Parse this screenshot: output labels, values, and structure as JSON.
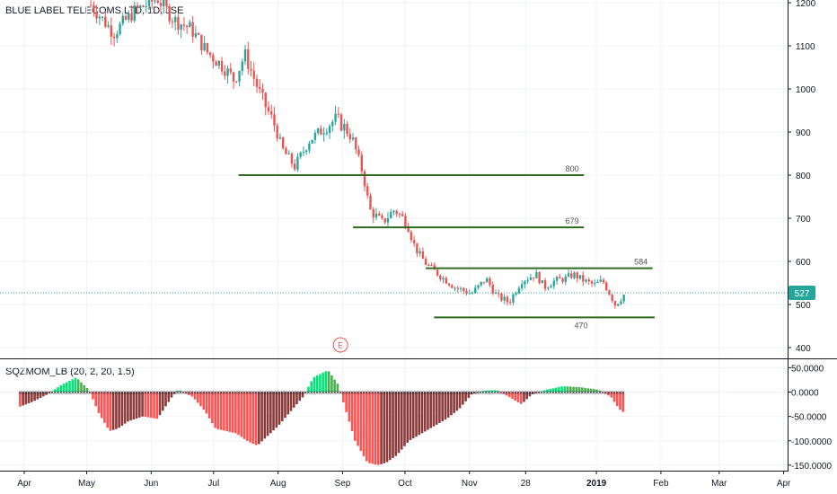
{
  "chart_data": [
    {
      "type": "candlestick",
      "title": "BLUE LABEL TELECOMS LTD, 1D, JSE",
      "y_ticks": [
        400,
        500,
        600,
        700,
        800,
        900,
        1000,
        1100,
        1200
      ],
      "ylim": [
        375,
        1210
      ],
      "x_labels": [
        "Apr",
        "May",
        "Jun",
        "Jul",
        "Aug",
        "Sep",
        "Oct",
        "Nov",
        "28",
        "2019",
        "Feb",
        "Mar",
        "Apr"
      ],
      "x_label_dates": [
        "2018-04-01",
        "2018-05-01",
        "2018-06-01",
        "2018-07-01",
        "2018-08-01",
        "2018-09-01",
        "2018-10-01",
        "2018-11-01",
        "2018-11-28",
        "2019-01-01",
        "2019-02-01",
        "2019-03-01",
        "2019-04-01"
      ],
      "last_price": "527",
      "last_price_value": 527,
      "up_color": "#26a69a",
      "down_color": "#ef5350",
      "grid": true,
      "close_path": [
        [
          "2018-05-03",
          1195
        ],
        [
          "2018-05-14",
          1130
        ],
        [
          "2018-05-24",
          1180
        ],
        [
          "2018-06-04",
          1210
        ],
        [
          "2018-06-12",
          1160
        ],
        [
          "2018-06-20",
          1140
        ],
        [
          "2018-06-28",
          1085
        ],
        [
          "2018-07-06",
          1050
        ],
        [
          "2018-07-11",
          1020
        ],
        [
          "2018-07-16",
          1080
        ],
        [
          "2018-07-24",
          980
        ],
        [
          "2018-07-30",
          920
        ],
        [
          "2018-08-03",
          860
        ],
        [
          "2018-08-09",
          820
        ],
        [
          "2018-08-16",
          880
        ],
        [
          "2018-08-23",
          910
        ],
        [
          "2018-08-29",
          930
        ],
        [
          "2018-09-03",
          905
        ],
        [
          "2018-09-06",
          880
        ],
        [
          "2018-09-11",
          800
        ],
        [
          "2018-09-14",
          720
        ],
        [
          "2018-09-20",
          690
        ],
        [
          "2018-09-26",
          720
        ],
        [
          "2018-10-02",
          690
        ],
        [
          "2018-10-06",
          630
        ],
        [
          "2018-10-11",
          595
        ],
        [
          "2018-10-17",
          570
        ],
        [
          "2018-10-25",
          540
        ],
        [
          "2018-11-02",
          525
        ],
        [
          "2018-11-09",
          560
        ],
        [
          "2018-11-14",
          520
        ],
        [
          "2018-11-20",
          505
        ],
        [
          "2018-11-26",
          555
        ],
        [
          "2018-12-03",
          570
        ],
        [
          "2018-12-07",
          540
        ],
        [
          "2018-12-12",
          555
        ],
        [
          "2018-12-17",
          560
        ],
        [
          "2018-12-21",
          570
        ],
        [
          "2018-12-26",
          555
        ],
        [
          "2018-12-31",
          545
        ],
        [
          "2019-01-04",
          555
        ],
        [
          "2019-01-08",
          520
        ],
        [
          "2019-01-10",
          500
        ],
        [
          "2019-01-12",
          510
        ],
        [
          "2019-01-15",
          527
        ]
      ],
      "horizontal_lines": [
        {
          "label": "800",
          "value": 800,
          "from": "2018-07-13",
          "to": "2018-12-26"
        },
        {
          "label": "679",
          "value": 679,
          "from": "2018-09-06",
          "to": "2018-12-26"
        },
        {
          "label": "584",
          "value": 584,
          "from": "2018-10-11",
          "to": "2019-01-28"
        },
        {
          "label": "470",
          "value": 470,
          "from": "2018-10-15",
          "to": "2019-01-29"
        }
      ],
      "level_color": "#2e6b1f",
      "event_marker": {
        "label": "E",
        "date": "2018-08-31"
      },
      "crosshair_line_value": 527
    },
    {
      "type": "bar",
      "title": "SQZMOM_LB (20, 2, 20, 1.5)",
      "y_ticks": [
        "50.0000",
        "0.0000",
        "-50.0000",
        "-100.0000",
        "-150.0000"
      ],
      "y_tick_values": [
        50,
        0,
        -50,
        -100,
        -150
      ],
      "ylim": [
        -155,
        55
      ],
      "colors": {
        "pos_rising": "#00e676",
        "pos_falling": "#4caf50",
        "neg_falling": "#ff5252",
        "neg_rising": "#8b3a3a",
        "squeeze_dot": "#131722"
      },
      "values_path": [
        [
          "2018-03-30",
          -30
        ],
        [
          "2018-04-05",
          -20
        ],
        [
          "2018-04-12",
          -5
        ],
        [
          "2018-04-19",
          15
        ],
        [
          "2018-04-26",
          30
        ],
        [
          "2018-05-02",
          5
        ],
        [
          "2018-05-07",
          -45
        ],
        [
          "2018-05-12",
          -80
        ],
        [
          "2018-05-16",
          -75
        ],
        [
          "2018-05-21",
          -60
        ],
        [
          "2018-05-28",
          -50
        ],
        [
          "2018-06-04",
          -55
        ],
        [
          "2018-06-11",
          -10
        ],
        [
          "2018-06-14",
          5
        ],
        [
          "2018-06-21",
          -10
        ],
        [
          "2018-06-27",
          -40
        ],
        [
          "2018-07-02",
          -75
        ],
        [
          "2018-07-07",
          -80
        ],
        [
          "2018-07-12",
          -85
        ],
        [
          "2018-07-17",
          -100
        ],
        [
          "2018-07-22",
          -110
        ],
        [
          "2018-07-27",
          -90
        ],
        [
          "2018-08-01",
          -70
        ],
        [
          "2018-08-07",
          -40
        ],
        [
          "2018-08-13",
          -10
        ],
        [
          "2018-08-18",
          30
        ],
        [
          "2018-08-25",
          45
        ],
        [
          "2018-08-30",
          15
        ],
        [
          "2018-09-02",
          -30
        ],
        [
          "2018-09-07",
          -100
        ],
        [
          "2018-09-13",
          -145
        ],
        [
          "2018-09-18",
          -150
        ],
        [
          "2018-09-22",
          -145
        ],
        [
          "2018-09-27",
          -130
        ],
        [
          "2018-10-03",
          -100
        ],
        [
          "2018-10-09",
          -85
        ],
        [
          "2018-10-15",
          -70
        ],
        [
          "2018-10-21",
          -55
        ],
        [
          "2018-10-27",
          -35
        ],
        [
          "2018-11-02",
          -5
        ],
        [
          "2018-11-08",
          3
        ],
        [
          "2018-11-14",
          4
        ],
        [
          "2018-11-20",
          -10
        ],
        [
          "2018-11-26",
          -25
        ],
        [
          "2018-12-01",
          -5
        ],
        [
          "2018-12-08",
          5
        ],
        [
          "2018-12-16",
          12
        ],
        [
          "2018-12-24",
          10
        ],
        [
          "2019-01-02",
          5
        ],
        [
          "2019-01-08",
          -10
        ],
        [
          "2019-01-12",
          -35
        ],
        [
          "2019-01-15",
          -45
        ]
      ]
    }
  ]
}
